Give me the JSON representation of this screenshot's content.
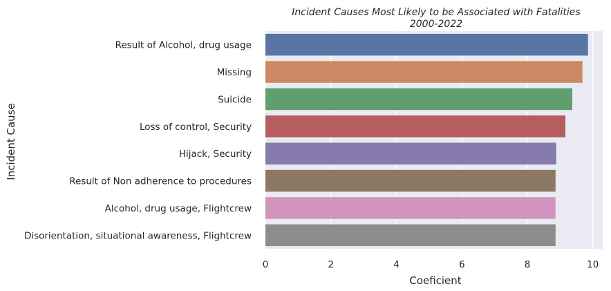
{
  "chart_data": {
    "type": "bar",
    "orientation": "horizontal",
    "title": "Incident Causes Most Likely to be Associated with Fatalities",
    "subtitle": "2000-2022",
    "xlabel": "Coeficient",
    "ylabel": "Incident Cause",
    "xlim": [
      0,
      10.3
    ],
    "xticks": [
      0,
      2,
      4,
      6,
      8,
      10
    ],
    "grid": true,
    "categories": [
      "Result of Alcohol, drug usage",
      "Missing",
      "Suicide",
      "Loss of control, Security",
      "Hijack, Security",
      "Result of Non adherence to procedures",
      "Alcohol, drug usage, Flightcrew",
      "Disorientation, situational awareness, Flightcrew"
    ],
    "values": [
      9.85,
      9.68,
      9.37,
      9.16,
      8.88,
      8.86,
      8.86,
      8.86
    ],
    "colors": [
      "#5975a4",
      "#cc8963",
      "#5f9e6e",
      "#b55d60",
      "#857aab",
      "#8d7866",
      "#d095bf",
      "#8c8c8c"
    ],
    "background": "#eaeaf2",
    "grid_color": "#ffffff"
  }
}
